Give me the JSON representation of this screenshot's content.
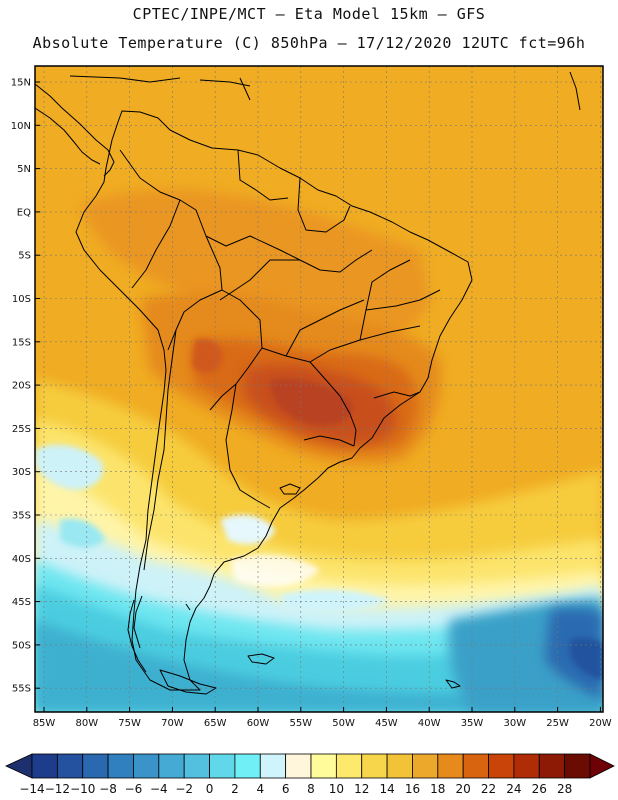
{
  "header": {
    "title_line1": "CPTEC/INPE/MCT –  Eta Model 15km – GFS",
    "title_line2": "Absolute Temperature (C) 850hPa – 17/12/2020 12UTC fct=96h"
  },
  "axes": {
    "lat_labels": [
      "15N",
      "10N",
      "5N",
      "EQ",
      "5S",
      "10S",
      "15S",
      "20S",
      "25S",
      "30S",
      "35S",
      "40S",
      "45S",
      "50S",
      "55S"
    ],
    "lon_labels": [
      "85W",
      "80W",
      "75W",
      "70W",
      "65W",
      "60W",
      "55W",
      "50W",
      "45W",
      "40W",
      "35W",
      "30W",
      "25W",
      "20W"
    ]
  },
  "legend": {
    "ticks": [
      "-14",
      "-12",
      "-10",
      "-8",
      "-6",
      "-4",
      "-2",
      "0",
      "2",
      "4",
      "6",
      "8",
      "10",
      "12",
      "14",
      "16",
      "18",
      "20",
      "22",
      "24",
      "26",
      "28"
    ],
    "colors": [
      "#1e3c8c",
      "#24529e",
      "#2a68b0",
      "#3080bf",
      "#3a94c9",
      "#45aad4",
      "#52c0de",
      "#60d8ea",
      "#70f0f6",
      "#d0f4fb",
      "#fff6dc",
      "#fffa9a",
      "#fde96c",
      "#f8d64c",
      "#f2c238",
      "#eca82a",
      "#e68a1c",
      "#d86410",
      "#c84408",
      "#b02c06",
      "#8c1a04",
      "#6a0c02"
    ],
    "underflow_color": "#1e2f6e",
    "overflow_color": "#6e0008"
  }
}
